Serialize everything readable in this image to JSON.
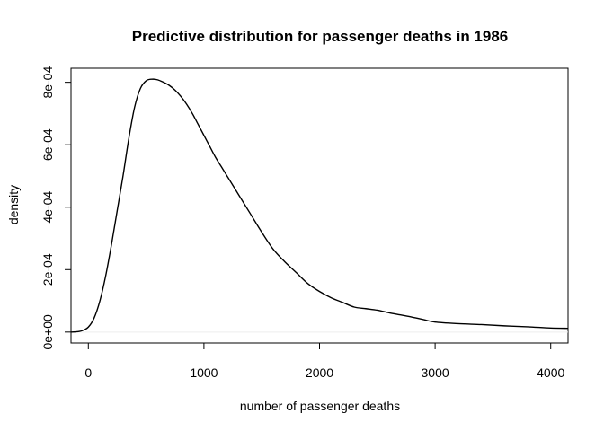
{
  "chart_data": {
    "type": "line",
    "title": "Predictive distribution for passenger deaths in 1986",
    "xlabel": "number of passenger deaths",
    "ylabel": "density",
    "xlim": [
      -150,
      4150
    ],
    "ylim": [
      -3.5e-05,
      0.000845
    ],
    "x_ticks": [
      0,
      1000,
      2000,
      3000,
      4000
    ],
    "x_tick_labels": [
      "0",
      "1000",
      "2000",
      "3000",
      "4000"
    ],
    "y_ticks": [
      0,
      0.0002,
      0.0004,
      0.0006,
      0.0008
    ],
    "y_tick_labels": [
      "0e+00",
      "2e-04",
      "4e-04",
      "6e-04",
      "8e-04"
    ],
    "grid": false,
    "series": [
      {
        "x": [
          -150,
          -100,
          -50,
          0,
          50,
          100,
          150,
          200,
          250,
          300,
          350,
          400,
          450,
          500,
          550,
          600,
          650,
          700,
          750,
          800,
          850,
          900,
          950,
          1000,
          1050,
          1100,
          1150,
          1200,
          1300,
          1400,
          1500,
          1600,
          1700,
          1800,
          1900,
          2000,
          2100,
          2200,
          2300,
          2400,
          2500,
          2600,
          2700,
          2800,
          2900,
          3000,
          3200,
          3400,
          3600,
          3800,
          4000,
          4150
        ],
        "y": [
          0.0,
          1e-06,
          5e-06,
          1.6e-05,
          4.5e-05,
          0.0001,
          0.00018,
          0.00028,
          0.00039,
          0.0005,
          0.00062,
          0.00072,
          0.00078,
          0.000805,
          0.00081,
          0.000808,
          0.0008,
          0.00079,
          0.000775,
          0.000755,
          0.00073,
          0.0007,
          0.000665,
          0.00063,
          0.000595,
          0.00056,
          0.00053,
          0.0005,
          0.00044,
          0.00038,
          0.00032,
          0.000265,
          0.000225,
          0.00019,
          0.000155,
          0.00013,
          0.00011,
          9.5e-05,
          8e-05,
          7.5e-05,
          7e-05,
          6.2e-05,
          5.5e-05,
          4.8e-05,
          4e-05,
          3.2e-05,
          2.7e-05,
          2.4e-05,
          2e-05,
          1.7e-05,
          1.3e-05,
          1.2e-05
        ]
      }
    ]
  }
}
